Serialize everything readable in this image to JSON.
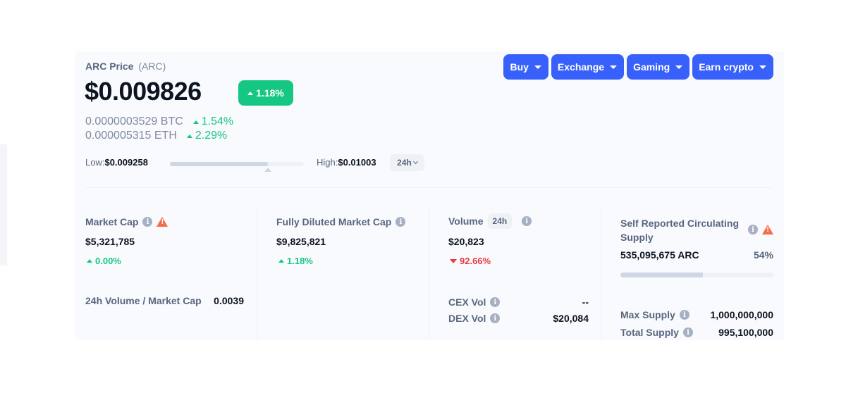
{
  "header": {
    "name": "ARC Price",
    "symbol": "(ARC)",
    "price": "$0.009826",
    "change": "1.18%",
    "btc_price": "0.0000003529 BTC",
    "btc_change": "1.54%",
    "eth_price": "0.000005315 ETH",
    "eth_change": "2.29%"
  },
  "range": {
    "low_label": "Low:",
    "low_value": "$0.009258",
    "high_label": "High:",
    "high_value": "$0.01003",
    "period": "24h",
    "position_fraction": 0.73
  },
  "buttons": [
    "Buy",
    "Exchange",
    "Gaming",
    "Earn crypto"
  ],
  "stats": {
    "market_cap": {
      "title": "Market Cap",
      "value": "$5,321,785",
      "change": "0.00%"
    },
    "vol_mcap": {
      "title": "24h Volume / Market Cap",
      "value": "0.0039"
    },
    "fdmc": {
      "title": "Fully Diluted Market Cap",
      "value": "$9,825,821",
      "change": "1.18%"
    },
    "volume": {
      "title": "Volume",
      "period": "24h",
      "value": "$20,823",
      "change": "92.66%",
      "cex_label": "CEX Vol",
      "cex_value": "--",
      "dex_label": "DEX Vol",
      "dex_value": "$20,084"
    },
    "supply": {
      "title": "Self Reported Circulating Supply",
      "value": "535,095,675 ARC",
      "percent": "54%",
      "fraction": 0.54,
      "max_label": "Max Supply",
      "max_value": "1,000,000,000",
      "total_label": "Total Supply",
      "total_value": "995,100,000"
    }
  },
  "colors": {
    "up": "#16c784",
    "down": "#ea3943",
    "accent": "#3861fb",
    "warning": "#f56d4b"
  },
  "icons": [
    "caret-up-icon",
    "caret-down-icon",
    "chevron-down-icon",
    "info-icon",
    "warning-icon"
  ]
}
